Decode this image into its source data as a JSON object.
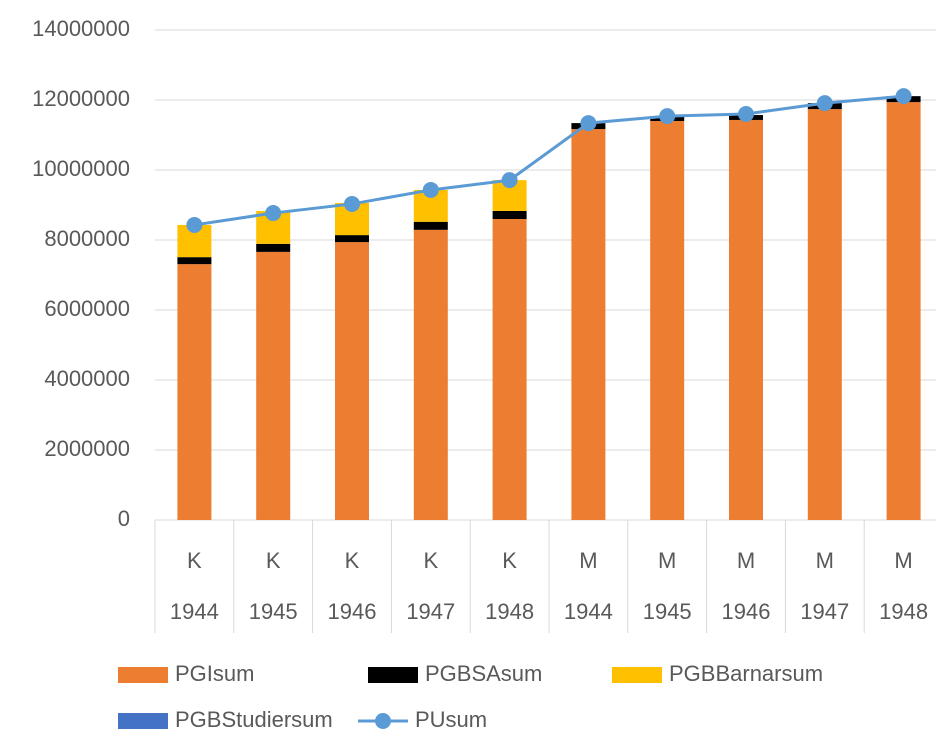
{
  "chart_data": {
    "type": "bar",
    "stacked": true,
    "groups": [
      "K",
      "K",
      "K",
      "K",
      "K",
      "M",
      "M",
      "M",
      "M",
      "M"
    ],
    "categories": [
      "1944",
      "1945",
      "1946",
      "1947",
      "1948",
      "1944",
      "1945",
      "1946",
      "1947",
      "1948"
    ],
    "series": [
      {
        "name": "PGIsum",
        "type": "bar",
        "color": "#ed7d31",
        "values": [
          7310000,
          7660000,
          7940000,
          8290000,
          8600000,
          11170000,
          11400000,
          11430000,
          11740000,
          11940000
        ]
      },
      {
        "name": "PGBSAsum",
        "type": "bar",
        "color": "#000000",
        "values": [
          200000,
          230000,
          200000,
          230000,
          230000,
          170000,
          140000,
          140000,
          170000,
          170000
        ]
      },
      {
        "name": "PGBBarnarsum",
        "type": "bar",
        "color": "#ffc000",
        "values": [
          920000,
          940000,
          920000,
          910000,
          880000,
          0,
          0,
          0,
          0,
          0
        ]
      },
      {
        "name": "PGBStudiersum",
        "type": "bar",
        "color": "#4472c4",
        "values": [
          0,
          0,
          0,
          0,
          0,
          0,
          0,
          0,
          0,
          0
        ]
      },
      {
        "name": "PUsum",
        "type": "line",
        "color": "#5b9bd5",
        "values": [
          8430000,
          8770000,
          9030000,
          9430000,
          9710000,
          11340000,
          11540000,
          11600000,
          11910000,
          12110000
        ]
      }
    ],
    "ylim": [
      0,
      14000000
    ],
    "yticks": [
      0,
      2000000,
      4000000,
      6000000,
      8000000,
      10000000,
      12000000,
      14000000
    ],
    "grid": true,
    "legend": "bottom"
  }
}
